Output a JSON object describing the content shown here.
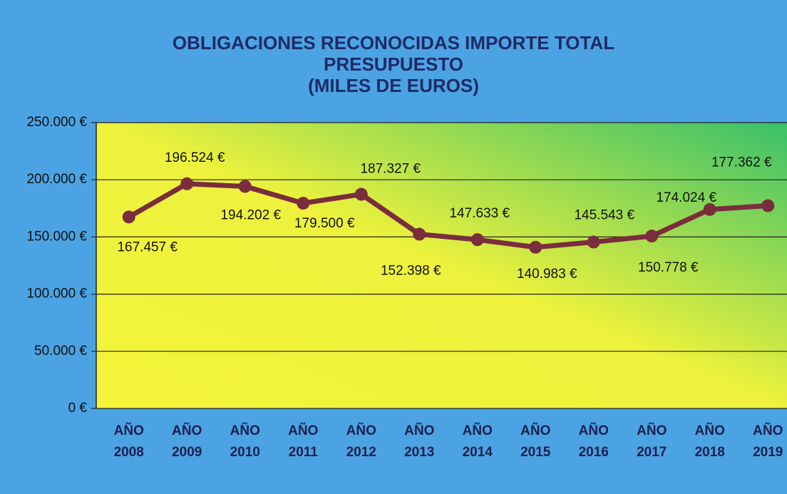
{
  "chart_data": {
    "type": "line",
    "title": "OBLIGACIONES RECONOCIDAS IMPORTE TOTAL PRESUPUESTO",
    "subtitle": "(MILES DE EUROS)",
    "categories": [
      "AÑO 2008",
      "AÑO 2009",
      "AÑO 2010",
      "AÑO 2011",
      "AÑO 2012",
      "AÑO 2013",
      "AÑO 2014",
      "AÑO 2015",
      "AÑO 2016",
      "AÑO 2017",
      "AÑO 2018",
      "AÑO 2019"
    ],
    "values": [
      167457,
      196524,
      194202,
      179500,
      187327,
      152398,
      147633,
      140983,
      145543,
      150778,
      174024,
      177362
    ],
    "value_labels": [
      "167.457 €",
      "196.524 €",
      "194.202 €",
      "179.500 €",
      "187.327 €",
      "152.398 €",
      "147.633 €",
      "140.983 €",
      "145.543 €",
      "150.778 €",
      "174.024 €",
      "177.362 €"
    ],
    "color": "#7a2d3c",
    "ylim": [
      0,
      250000
    ],
    "yticks": [
      {
        "value": 0,
        "label": "0 €"
      },
      {
        "value": 50000,
        "label": "50.000 €"
      },
      {
        "value": 100000,
        "label": "100.000 €"
      },
      {
        "value": 150000,
        "label": "150.000 €"
      },
      {
        "value": 200000,
        "label": "200.000 €"
      },
      {
        "value": 250000,
        "label": "250.000 €"
      }
    ],
    "grid": true
  }
}
